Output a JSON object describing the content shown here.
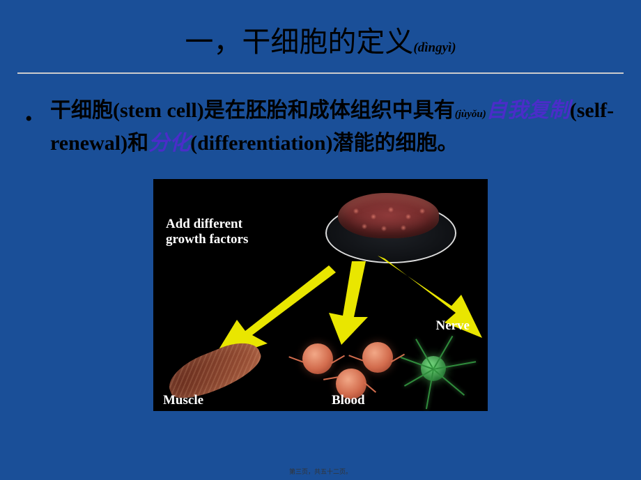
{
  "title": {
    "main": "一，干细胞的定义",
    "pinyin": "(dìngyì)"
  },
  "body": {
    "seg1": "干细胞(stem cell)是在胚胎和成体组织中具有",
    "pinyin1": "(jùyǒu)",
    "seg2_purple_a": "自我复制",
    "seg2_black_a": "(self-renewal)和",
    "seg2_purple_b": "分化",
    "seg2_black_b": "(differentiation)潜能的细胞。"
  },
  "figure": {
    "growth_label": "Add different\ngrowth factors",
    "muscle_label": "Muscle",
    "blood_label": "Blood",
    "nerve_label": "Nerve",
    "arrow_color": "#e9e600",
    "bg_color": "#000000",
    "cluster_color": "#8e3a3a",
    "blood_color": "#d26c4d",
    "nerve_color": "#2f8c3c",
    "label_color": "#ffffff",
    "label_fontsize": 19
  },
  "colors": {
    "page_bg": "#1a4f98",
    "text_black": "#000000",
    "text_purple": "#4a2dc9",
    "hr": "#cccccc"
  },
  "footer": "第三页，共五十二页。"
}
